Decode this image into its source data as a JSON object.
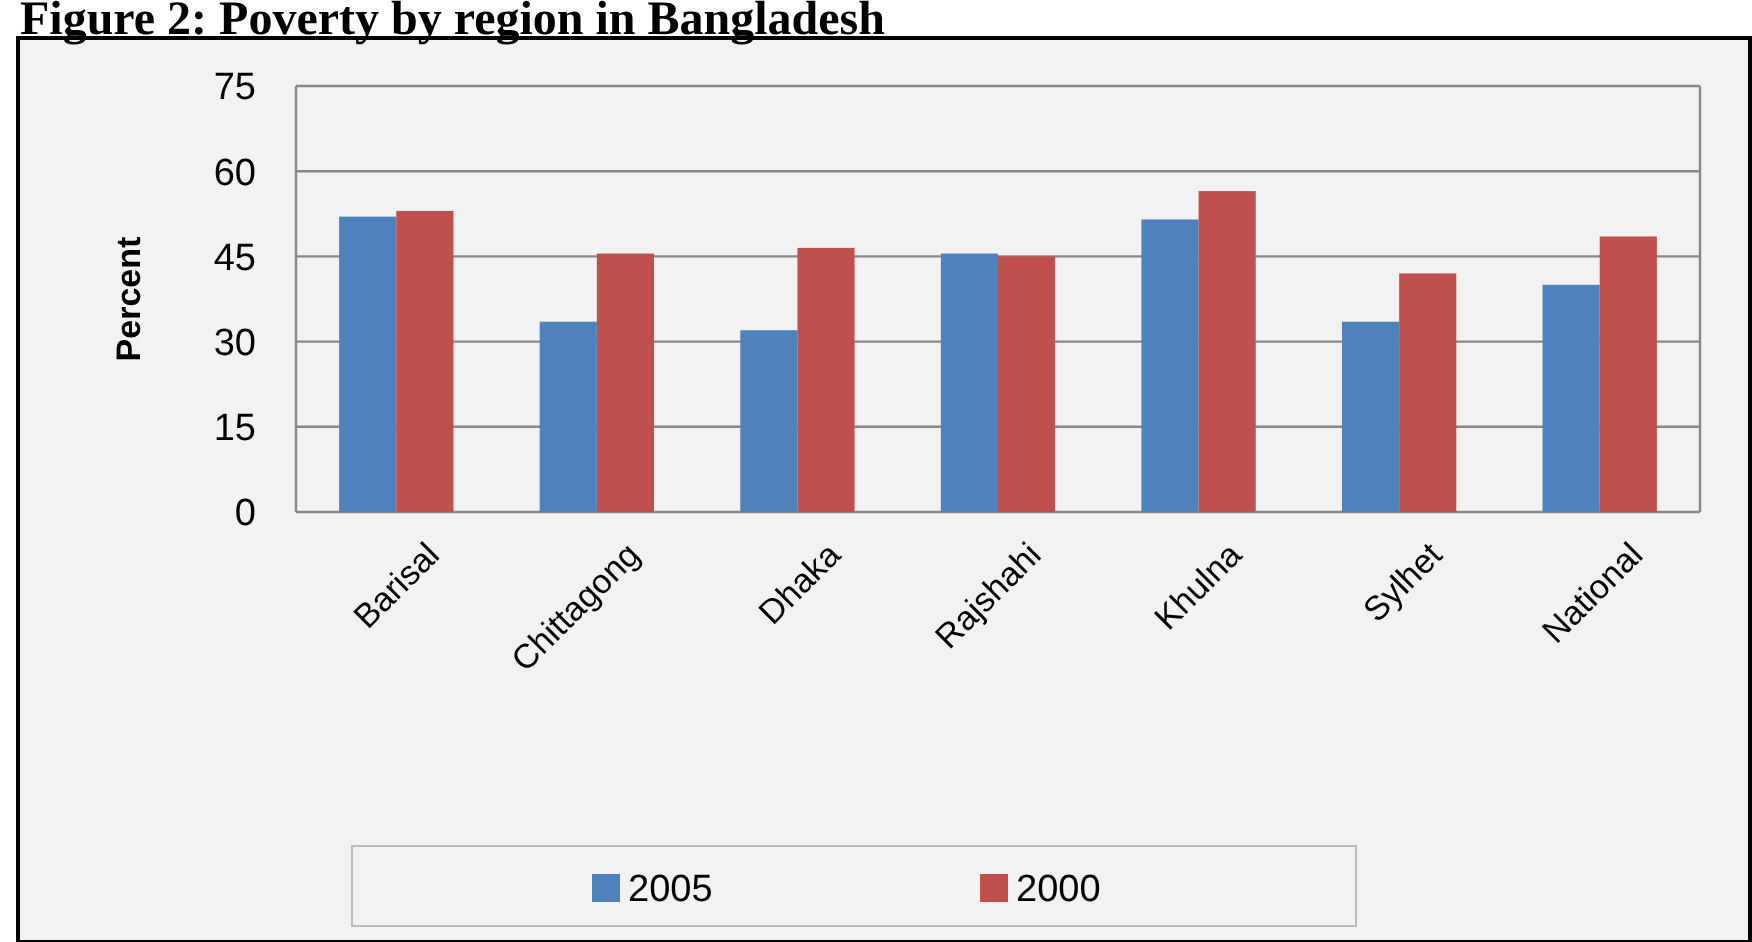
{
  "chart_data": {
    "type": "bar",
    "title": "Figure 2:  Poverty by region in Bangladesh",
    "ylabel": "Percent",
    "categories": [
      "Barisal",
      "Chittagong",
      "Dhaka",
      "Rajshahi",
      "Khulna",
      "Sylhet",
      "National"
    ],
    "series": [
      {
        "name": "2005",
        "color": "#4f81bd",
        "values": [
          52,
          33.5,
          32,
          45.5,
          51.5,
          33.5,
          40
        ]
      },
      {
        "name": "2000",
        "color": "#c0504d",
        "values": [
          53,
          45.5,
          46.5,
          45,
          56.5,
          42,
          48.5
        ]
      }
    ],
    "ylim": [
      0,
      75
    ],
    "yticks": [
      0,
      15,
      30,
      45,
      60,
      75
    ],
    "grid": "y",
    "legend": "bottom"
  }
}
